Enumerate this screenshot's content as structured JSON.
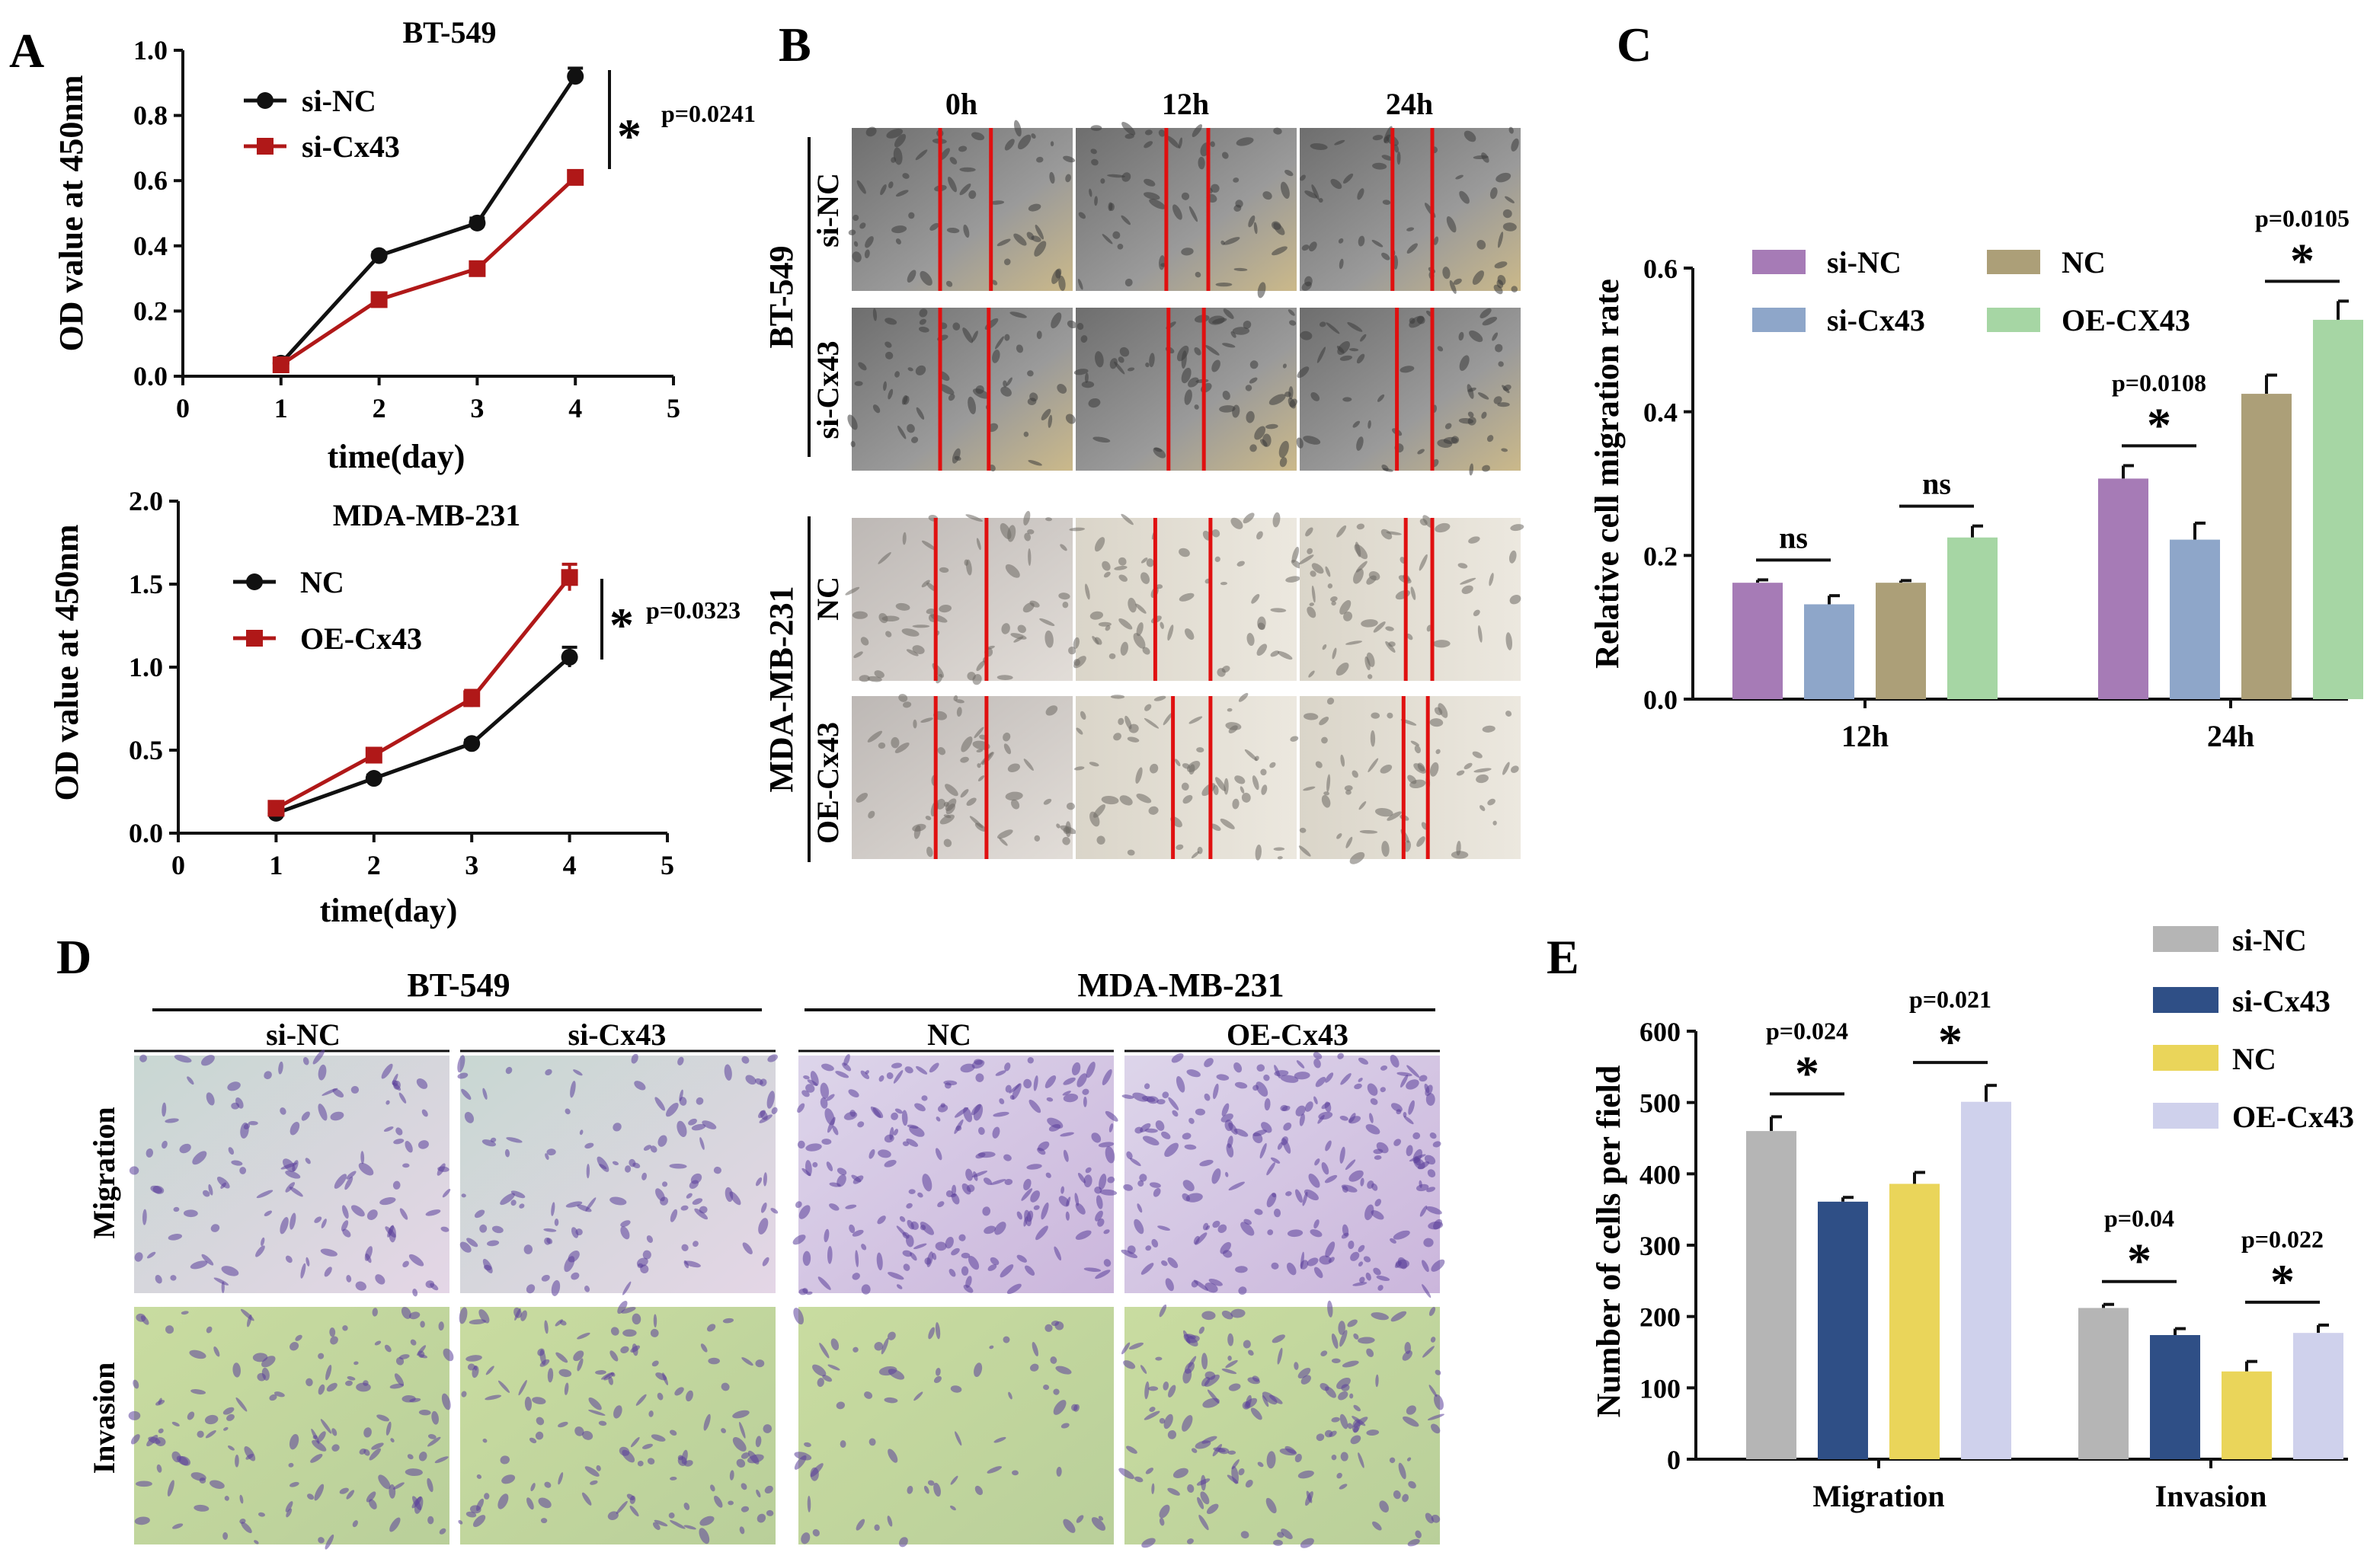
{
  "colors": {
    "black": "#111111",
    "red": "#b01818",
    "c_si_nc": "#a67bb6",
    "c_si_cx43": "#8ea6c9",
    "c_nc": "#ac9f78",
    "c_oe_cx43": "#a6d6a4",
    "e_si_nc": "#b5b5b5",
    "e_si_cx43": "#2f4f86",
    "e_nc": "#ead55a",
    "e_oe_cx43": "#cfd1ec",
    "wound_line": "#e01010",
    "stain": "#5b3f9a"
  },
  "panels": {
    "A": "A",
    "B": "B",
    "C": "C",
    "D": "D",
    "E": "E"
  },
  "chart_data": [
    {
      "id": "A1",
      "type": "line",
      "title": "BT-549",
      "xlabel": "time(day)",
      "ylabel": "OD value at 450nm",
      "xlim": [
        0,
        5
      ],
      "ylim": [
        0,
        1.0
      ],
      "x_ticks": [
        0,
        1,
        2,
        3,
        4,
        5
      ],
      "y_ticks": [
        0.0,
        0.2,
        0.4,
        0.6,
        0.8,
        1.0
      ],
      "y_tick_labels": [
        "0.0",
        "0.2",
        "0.4",
        "0.6",
        "0.8",
        "1.0"
      ],
      "x": [
        1,
        2,
        3,
        4
      ],
      "series": [
        {
          "name": "si-NC",
          "color": "#111111",
          "marker": "circle",
          "values": [
            0.04,
            0.37,
            0.47,
            0.92
          ],
          "err": [
            0.01,
            0.01,
            0.015,
            0.025
          ]
        },
        {
          "name": "si-Cx43",
          "color": "#b01818",
          "marker": "square",
          "values": [
            0.035,
            0.235,
            0.33,
            0.61
          ],
          "err": [
            0.01,
            0.01,
            0.01,
            0.01
          ]
        }
      ],
      "annotation": {
        "star": "*",
        "p": "p=0.0241"
      }
    },
    {
      "id": "A2",
      "type": "line",
      "title": "MDA-MB-231",
      "xlabel": "time(day)",
      "ylabel": "OD value at 450nm",
      "xlim": [
        0,
        5
      ],
      "ylim": [
        0,
        2.0
      ],
      "x_ticks": [
        0,
        1,
        2,
        3,
        4,
        5
      ],
      "y_ticks": [
        0.0,
        0.5,
        1.0,
        1.5,
        2.0
      ],
      "y_tick_labels": [
        "0.0",
        "0.5",
        "1.0",
        "1.5",
        "2.0"
      ],
      "x": [
        1,
        2,
        3,
        4
      ],
      "series": [
        {
          "name": "NC",
          "color": "#111111",
          "marker": "circle",
          "values": [
            0.12,
            0.33,
            0.54,
            1.06
          ],
          "err": [
            0.02,
            0.02,
            0.02,
            0.06
          ]
        },
        {
          "name": "OE-Cx43",
          "color": "#b01818",
          "marker": "square",
          "values": [
            0.15,
            0.47,
            0.81,
            1.54
          ],
          "err": [
            0.02,
            0.02,
            0.05,
            0.08
          ]
        }
      ],
      "annotation": {
        "star": "*",
        "p": "p=0.0323"
      }
    },
    {
      "id": "C",
      "type": "bar",
      "xlabel": "",
      "ylabel": "Relative cell migration rate",
      "ylim": [
        0,
        0.6
      ],
      "y_ticks": [
        0.0,
        0.2,
        0.4,
        0.6
      ],
      "y_tick_labels": [
        "0.0",
        "0.2",
        "0.4",
        "0.6"
      ],
      "categories": [
        "12h",
        "24h"
      ],
      "series": [
        {
          "name": "si-NC",
          "color": "#a67bb6",
          "values": [
            0.162,
            0.307
          ],
          "err": [
            0.004,
            0.018
          ]
        },
        {
          "name": "si-Cx43",
          "color": "#8ea6c9",
          "values": [
            0.132,
            0.222
          ],
          "err": [
            0.012,
            0.023
          ]
        },
        {
          "name": "NC",
          "color": "#ac9f78",
          "values": [
            0.162,
            0.425
          ],
          "err": [
            0.003,
            0.026
          ]
        },
        {
          "name": "OE-CX43",
          "color": "#a6d6a4",
          "values": [
            0.225,
            0.528
          ],
          "err": [
            0.016,
            0.026
          ]
        }
      ],
      "comparisons": [
        {
          "label": "ns",
          "p": ""
        },
        {
          "label": "ns",
          "p": ""
        },
        {
          "label": "*",
          "p": "p=0.0108"
        },
        {
          "label": "*",
          "p": "p=0.0105"
        }
      ]
    },
    {
      "id": "E",
      "type": "bar",
      "xlabel": "",
      "ylabel": "Number of cells per field",
      "ylim": [
        0,
        600
      ],
      "y_ticks": [
        0,
        100,
        200,
        300,
        400,
        500,
        600
      ],
      "y_tick_labels": [
        "0",
        "100",
        "200",
        "300",
        "400",
        "500",
        "600"
      ],
      "categories": [
        "Migration",
        "Invasion"
      ],
      "series": [
        {
          "name": "si-NC",
          "color": "#b5b5b5",
          "values": [
            460,
            212
          ],
          "err": [
            20,
            5
          ]
        },
        {
          "name": "si-Cx43",
          "color": "#2f4f86",
          "values": [
            361,
            174
          ],
          "err": [
            6,
            9
          ]
        },
        {
          "name": "NC",
          "color": "#ead55a",
          "values": [
            386,
            123
          ],
          "err": [
            16,
            14
          ]
        },
        {
          "name": "OE-Cx43",
          "color": "#cfd1ec",
          "values": [
            501,
            177
          ],
          "err": [
            23,
            11
          ]
        }
      ],
      "comparisons": [
        {
          "label": "*",
          "p": "p=0.024"
        },
        {
          "label": "*",
          "p": "p=0.021"
        },
        {
          "label": "*",
          "p": "p=0.04"
        },
        {
          "label": "*",
          "p": "p=0.022"
        }
      ]
    }
  ],
  "panel_b": {
    "time_labels": [
      "0h",
      "12h",
      "24h"
    ],
    "group_labels": [
      "BT-549",
      "MDA-MB-231"
    ],
    "row_labels": [
      "si-NC",
      "si-Cx43",
      "NC",
      "OE-Cx43"
    ]
  },
  "panel_d": {
    "group_labels": [
      "BT-549",
      "MDA-MB-231"
    ],
    "col_labels": [
      "si-NC",
      "si-Cx43",
      "NC",
      "OE-Cx43"
    ],
    "row_labels": [
      "Migration",
      "Invasion"
    ]
  }
}
